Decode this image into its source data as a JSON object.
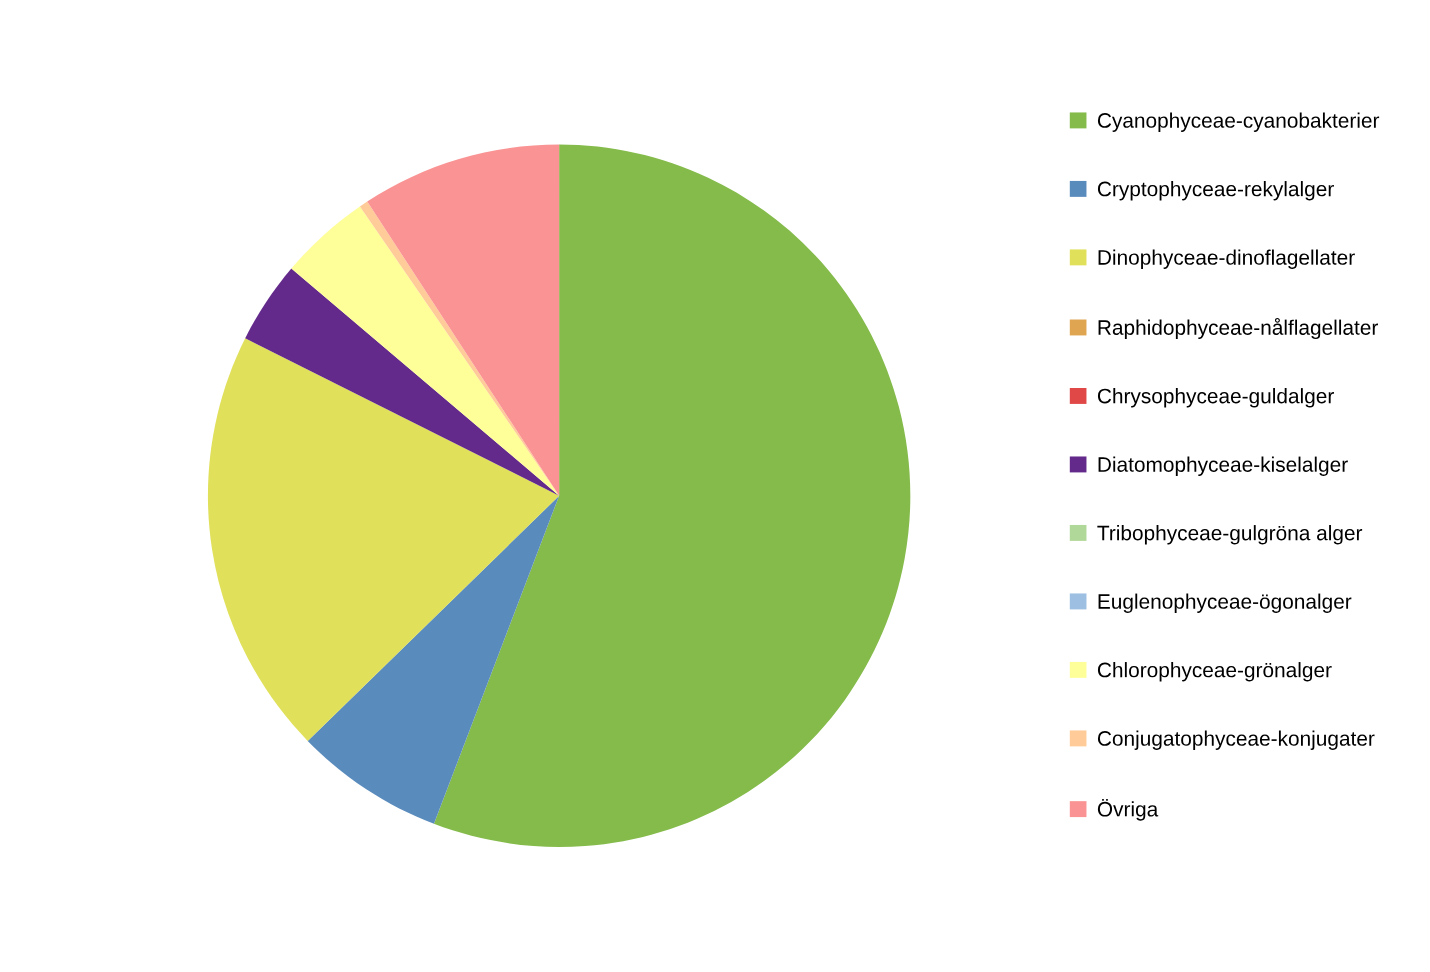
{
  "chart_data": {
    "type": "pie",
    "categories": [
      "Cyanophyceae-cyanobakterier",
      "Cryptophyceae-rekylalger",
      "Dinophyceae-dinoflagellater",
      "Raphidophyceae-nålflagellater",
      "Chrysophyceae-guldalger",
      "Diatomophyceae-kiselalger",
      "Tribophyceae-gulgröna alger",
      "Euglenophyceae-ögonalger",
      "Chlorophyceae-grönalger",
      "Conjugatophyceae-konjugater",
      "Övriga"
    ],
    "values": [
      55.8,
      6.9,
      19.7,
      0,
      0,
      3.8,
      0,
      0,
      4.2,
      0.4,
      9.2
    ],
    "colors": [
      "#84bb4a",
      "#5a8bbd",
      "#e0e05a",
      "#e0a550",
      "#e04848",
      "#632a8c",
      "#b0d898",
      "#9cbfe2",
      "#ffff99",
      "#ffcc99",
      "#fa9494"
    ],
    "legend": "right"
  }
}
